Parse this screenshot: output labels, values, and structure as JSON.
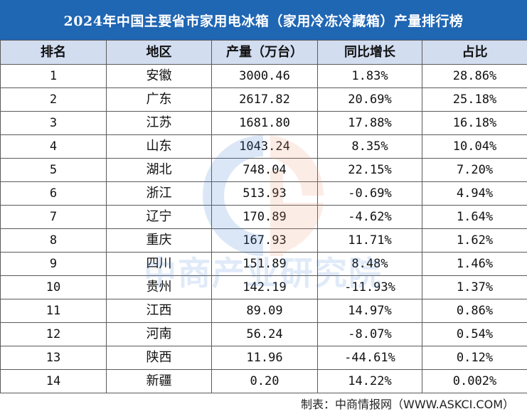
{
  "title": "2024年中国主要省市家用电冰箱（家用冷冻冷藏箱）产量排行榜",
  "headers": [
    "排名",
    "地区",
    "产量（万台）",
    "同比增长",
    "占比"
  ],
  "rows": [
    [
      "1",
      "安徽",
      "3000.46",
      "1.83%",
      "28.86%"
    ],
    [
      "2",
      "广东",
      "2617.82",
      "20.69%",
      "25.18%"
    ],
    [
      "3",
      "江苏",
      "1681.80",
      "17.88%",
      "16.18%"
    ],
    [
      "4",
      "山东",
      "1043.24",
      "8.35%",
      "10.04%"
    ],
    [
      "5",
      "湖北",
      "748.04",
      "22.15%",
      "7.20%"
    ],
    [
      "6",
      "浙江",
      "513.93",
      "-0.69%",
      "4.94%"
    ],
    [
      "7",
      "辽宁",
      "170.89",
      "-4.62%",
      "1.64%"
    ],
    [
      "8",
      "重庆",
      "167.93",
      "11.71%",
      "1.62%"
    ],
    [
      "9",
      "四川",
      "151.89",
      "8.48%",
      "1.46%"
    ],
    [
      "10",
      "贵州",
      "142.19",
      "-11.93%",
      "1.37%"
    ],
    [
      "11",
      "江西",
      "89.09",
      "14.97%",
      "0.86%"
    ],
    [
      "12",
      "河南",
      "56.24",
      "-8.07%",
      "0.54%"
    ],
    [
      "13",
      "陕西",
      "11.96",
      "-44.61%",
      "0.12%"
    ],
    [
      "14",
      "新疆",
      "0.20",
      "14.22%",
      "0.002%"
    ]
  ],
  "watermark_text": "中商产业研究院",
  "footer": "制表：中商情报网（WWW.ASKCI.COM）",
  "colors": {
    "title_bg": "#1f66b3",
    "header_bg": "#d2ddf0",
    "watermark_blue": "#3f7fd1",
    "watermark_orange": "#ef9a7a"
  }
}
